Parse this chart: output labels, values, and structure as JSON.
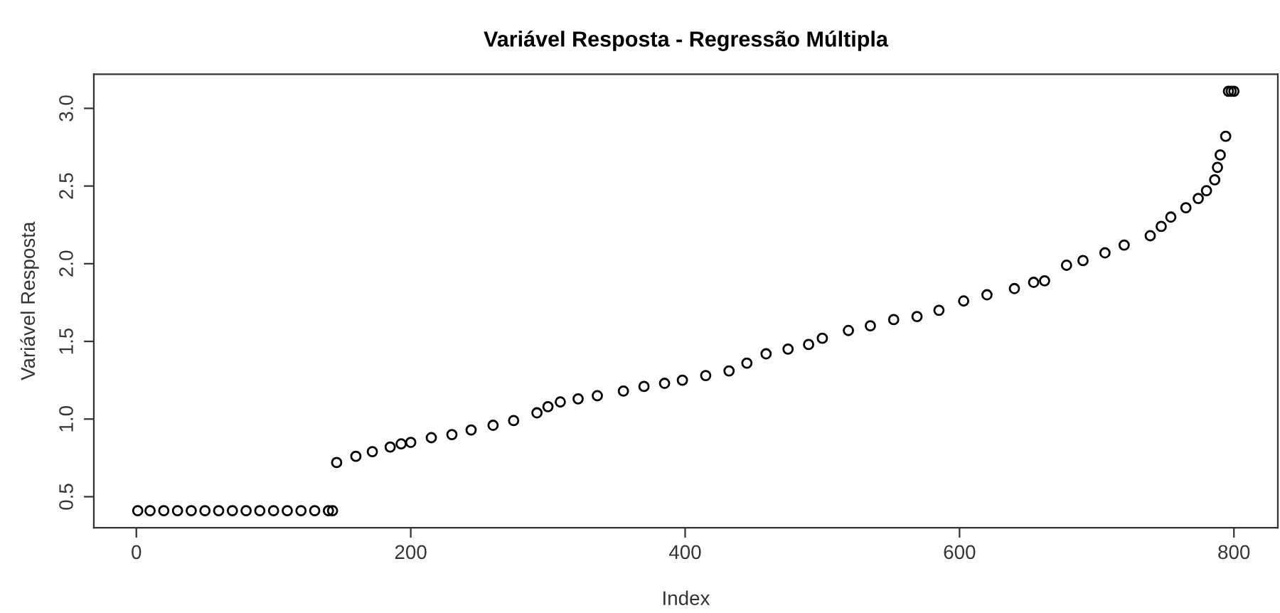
{
  "chart_data": {
    "type": "scatter",
    "title": "Variável Resposta - Regressão Múltipla",
    "xlabel": "Index",
    "ylabel": "Variável Resposta",
    "x": [
      1,
      10,
      20,
      30,
      40,
      50,
      60,
      70,
      80,
      90,
      100,
      110,
      120,
      130,
      140,
      143,
      146,
      160,
      172,
      185,
      193,
      200,
      215,
      230,
      244,
      260,
      275,
      292,
      300,
      309,
      322,
      336,
      355,
      370,
      385,
      398,
      415,
      432,
      445,
      459,
      475,
      490,
      500,
      519,
      535,
      552,
      569,
      585,
      603,
      620,
      640,
      654,
      662,
      678,
      690,
      706,
      720,
      739,
      747,
      754,
      765,
      774,
      780,
      786,
      788,
      790,
      794,
      796,
      798,
      800
    ],
    "values": [
      0.41,
      0.41,
      0.41,
      0.41,
      0.41,
      0.41,
      0.41,
      0.41,
      0.41,
      0.41,
      0.41,
      0.41,
      0.41,
      0.41,
      0.41,
      0.41,
      0.72,
      0.76,
      0.79,
      0.82,
      0.84,
      0.85,
      0.88,
      0.9,
      0.93,
      0.96,
      0.99,
      1.04,
      1.08,
      1.11,
      1.13,
      1.15,
      1.18,
      1.21,
      1.23,
      1.25,
      1.28,
      1.31,
      1.36,
      1.42,
      1.45,
      1.48,
      1.52,
      1.57,
      1.6,
      1.64,
      1.66,
      1.7,
      1.76,
      1.8,
      1.84,
      1.88,
      1.89,
      1.99,
      2.02,
      2.07,
      2.12,
      2.18,
      2.24,
      2.3,
      2.36,
      2.42,
      2.47,
      2.54,
      2.62,
      2.7,
      2.82,
      3.11,
      3.11,
      3.11
    ],
    "color": "#000000",
    "marker": "circle",
    "grid": false,
    "xlim": [
      -31,
      832
    ],
    "ylim": [
      0.3,
      3.22
    ],
    "xticks": [
      0,
      200,
      400,
      600,
      800
    ],
    "yticks": [
      {
        "value": 0.5,
        "label": "0.5"
      },
      {
        "value": 1.0,
        "label": "1.0"
      },
      {
        "value": 1.5,
        "label": "1.5"
      },
      {
        "value": 2.0,
        "label": "2.0"
      },
      {
        "value": 2.5,
        "label": "2.5"
      },
      {
        "value": 3.0,
        "label": "3.0"
      }
    ]
  }
}
